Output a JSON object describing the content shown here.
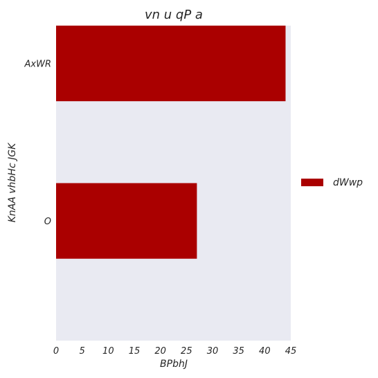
{
  "chart_data": {
    "type": "bar",
    "orientation": "horizontal",
    "title": "vn u qP a",
    "xlabel": "BPbhJ",
    "ylabel": "KnAA vhbHc JGK",
    "categories": [
      "AxWR",
      "O"
    ],
    "series": [
      {
        "name": "dWwp",
        "values": [
          44,
          27
        ],
        "color": "#aa0000"
      }
    ],
    "xlim": [
      0,
      45
    ],
    "xticks": [
      0,
      5,
      10,
      15,
      20,
      25,
      30,
      35,
      40,
      45
    ],
    "grid": false,
    "legend_position": "right",
    "plot_background": "#e9eaf2"
  }
}
